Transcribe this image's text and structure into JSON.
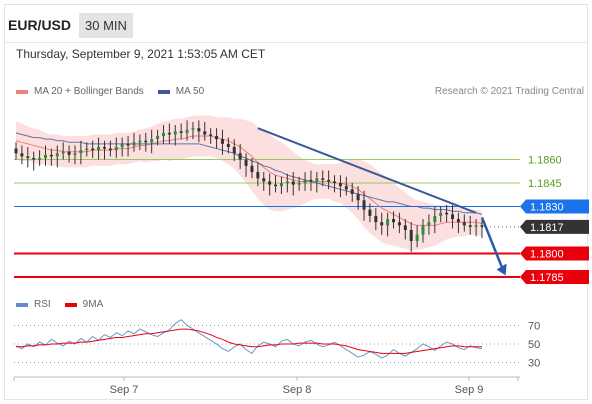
{
  "header": {
    "pair": "EUR/USD",
    "timeframe": "30 MIN",
    "datetime": "Thursday, September 9, 2021 1:53:05 AM CET"
  },
  "legend": {
    "ma20": "MA 20 + Bollinger Bands",
    "ma50": "MA 50",
    "credit": "Research © 2021 Trading Central"
  },
  "rsi_legend": {
    "rsi": "RSI",
    "ma9": "9MA"
  },
  "colors": {
    "resistance": "#7fbf3f",
    "pivot": "#1a73e8",
    "support": "#e8000b",
    "price": "#333333",
    "ma20": "#f08080",
    "ma50": "#3b5998",
    "rsi": "#6699cc"
  },
  "chart_data": [
    {
      "type": "candlestick",
      "ylim": [
        1.1778,
        1.1898
      ],
      "levels": [
        {
          "value": 1.186,
          "label": "1.1860",
          "kind": "resistance"
        },
        {
          "value": 1.1845,
          "label": "1.1845",
          "kind": "resistance"
        },
        {
          "value": 1.183,
          "label": "1.1830",
          "kind": "pivot"
        },
        {
          "value": 1.1817,
          "label": "1.1817",
          "kind": "price"
        },
        {
          "value": 1.18,
          "label": "1.1800",
          "kind": "support"
        },
        {
          "value": 1.1785,
          "label": "1.1785",
          "kind": "support"
        }
      ],
      "close": [
        1.1864,
        1.1862,
        1.1861,
        1.186,
        1.1861,
        1.1863,
        1.1862,
        1.1864,
        1.1865,
        1.1863,
        1.1864,
        1.1866,
        1.1867,
        1.1866,
        1.1868,
        1.1867,
        1.1866,
        1.1868,
        1.187,
        1.1869,
        1.1871,
        1.1872,
        1.1871,
        1.1873,
        1.1875,
        1.1877,
        1.1876,
        1.1878,
        1.1877,
        1.1879,
        1.188,
        1.1878,
        1.1876,
        1.1875,
        1.1873,
        1.187,
        1.1868,
        1.1864,
        1.186,
        1.1856,
        1.1852,
        1.1848,
        1.1846,
        1.1844,
        1.1843,
        1.1845,
        1.1846,
        1.1844,
        1.1845,
        1.1847,
        1.1846,
        1.1848,
        1.1847,
        1.1846,
        1.1845,
        1.1843,
        1.1841,
        1.1838,
        1.1834,
        1.1828,
        1.1824,
        1.182,
        1.1818,
        1.1822,
        1.182,
        1.1818,
        1.1815,
        1.1808,
        1.1812,
        1.1818,
        1.182,
        1.1824,
        1.1826,
        1.1825,
        1.1822,
        1.182,
        1.1818,
        1.1817,
        1.1818,
        1.1817
      ],
      "ma20": [
        1.1872,
        1.1871,
        1.187,
        1.1869,
        1.1868,
        1.1867,
        1.1866,
        1.1866,
        1.1865,
        1.1865,
        1.1865,
        1.1865,
        1.1865,
        1.1866,
        1.1866,
        1.1866,
        1.1866,
        1.1867,
        1.1867,
        1.1867,
        1.1868,
        1.1869,
        1.1869,
        1.187,
        1.1871,
        1.1872,
        1.1872,
        1.1873,
        1.1873,
        1.1874,
        1.1875,
        1.1875,
        1.1875,
        1.1875,
        1.1874,
        1.1873,
        1.1872,
        1.187,
        1.1868,
        1.1865,
        1.1862,
        1.1858,
        1.1855,
        1.1852,
        1.185,
        1.1849,
        1.1848,
        1.1847,
        1.1846,
        1.1846,
        1.1846,
        1.1846,
        1.1846,
        1.1846,
        1.1845,
        1.1845,
        1.1844,
        1.1843,
        1.1841,
        1.1838,
        1.1835,
        1.1832,
        1.1829,
        1.1827,
        1.1825,
        1.1823,
        1.1821,
        1.1819,
        1.1818,
        1.1818,
        1.1818,
        1.1818,
        1.1819,
        1.182,
        1.182,
        1.182,
        1.182,
        1.182,
        1.182,
        1.1819
      ],
      "ma50": [
        1.1877,
        1.1876,
        1.1875,
        1.1874,
        1.1874,
        1.1873,
        1.1873,
        1.1872,
        1.1872,
        1.1871,
        1.1871,
        1.1871,
        1.187,
        1.187,
        1.187,
        1.187,
        1.187,
        1.187,
        1.187,
        1.187,
        1.187,
        1.187,
        1.187,
        1.187,
        1.187,
        1.187,
        1.187,
        1.187,
        1.187,
        1.187,
        1.187,
        1.187,
        1.1869,
        1.1868,
        1.1867,
        1.1866,
        1.1865,
        1.1864,
        1.1862,
        1.1861,
        1.1859,
        1.1858,
        1.1856,
        1.1855,
        1.1853,
        1.1852,
        1.185,
        1.1849,
        1.1848,
        1.1847,
        1.1846,
        1.1845,
        1.1844,
        1.1843,
        1.1842,
        1.1841,
        1.184,
        1.1839,
        1.1838,
        1.1837,
        1.1836,
        1.1835,
        1.1834,
        1.1833,
        1.1833,
        1.1832,
        1.1831,
        1.183,
        1.183,
        1.1829,
        1.1829,
        1.1828,
        1.1828,
        1.1828,
        1.1827,
        1.1827,
        1.1826,
        1.1826,
        1.1826,
        1.1825
      ],
      "bb_width": [
        0.0012,
        0.0012,
        0.0011,
        0.0011,
        0.0011,
        0.001,
        0.001,
        0.001,
        0.001,
        0.001,
        0.001,
        0.001,
        0.001,
        0.001,
        0.001,
        0.001,
        0.001,
        0.001,
        0.001,
        0.001,
        0.001,
        0.001,
        0.0011,
        0.0011,
        0.0012,
        0.0012,
        0.0013,
        0.0013,
        0.0013,
        0.0013,
        0.0013,
        0.0013,
        0.0013,
        0.0013,
        0.0013,
        0.0014,
        0.0015,
        0.0016,
        0.0018,
        0.002,
        0.0022,
        0.0023,
        0.0024,
        0.0024,
        0.0023,
        0.0022,
        0.002,
        0.0018,
        0.0016,
        0.0014,
        0.0012,
        0.0011,
        0.0011,
        0.0011,
        0.0012,
        0.0013,
        0.0015,
        0.0017,
        0.0019,
        0.0021,
        0.0022,
        0.0022,
        0.0022,
        0.0021,
        0.002,
        0.0019,
        0.0018,
        0.0017,
        0.0016,
        0.0015,
        0.0014,
        0.0013,
        0.0012,
        0.0011,
        0.001,
        0.0009,
        0.0009,
        0.0008,
        0.0008,
        0.0008
      ],
      "trendline": {
        "from": [
          41,
          1.188
        ],
        "to": [
          78,
          1.1826
        ]
      },
      "forecast_arrow": {
        "from": [
          79,
          1.1823
        ],
        "to": [
          83,
          1.1786
        ]
      },
      "x_ticks": [
        {
          "index": 25,
          "label": "Sep 7"
        },
        {
          "index": 63,
          "label": "Sep 8"
        },
        {
          "index": 100,
          "label": "Sep 9"
        }
      ],
      "x_count": 110
    },
    {
      "type": "line",
      "ylim": [
        20,
        80
      ],
      "y_ticks": [
        70,
        50,
        30
      ],
      "rsi": [
        48,
        45,
        50,
        47,
        52,
        49,
        55,
        51,
        48,
        53,
        50,
        56,
        52,
        58,
        54,
        60,
        57,
        62,
        59,
        64,
        61,
        66,
        63,
        60,
        58,
        62,
        65,
        72,
        76,
        70,
        66,
        62,
        58,
        54,
        50,
        45,
        42,
        47,
        50,
        44,
        40,
        48,
        52,
        50,
        47,
        53,
        55,
        50,
        48,
        52,
        54,
        50,
        47,
        49,
        52,
        48,
        44,
        40,
        36,
        38,
        42,
        39,
        35,
        38,
        44,
        40,
        37,
        41,
        45,
        50,
        47,
        43,
        48,
        52,
        50,
        46,
        44,
        48,
        46,
        45
      ],
      "ma9": [
        47,
        47,
        48,
        48,
        49,
        49,
        50,
        50,
        51,
        51,
        51,
        52,
        52,
        53,
        54,
        55,
        56,
        57,
        57,
        58,
        59,
        60,
        61,
        61,
        62,
        63,
        64,
        65,
        66,
        66,
        65,
        64,
        62,
        60,
        57,
        55,
        52,
        50,
        49,
        48,
        47,
        47,
        48,
        49,
        49,
        50,
        50,
        50,
        51,
        51,
        51,
        51,
        50,
        50,
        50,
        49,
        48,
        46,
        44,
        43,
        42,
        41,
        40,
        40,
        40,
        40,
        40,
        41,
        42,
        43,
        44,
        45,
        46,
        47,
        48,
        48,
        47,
        47,
        47,
        47
      ]
    }
  ]
}
